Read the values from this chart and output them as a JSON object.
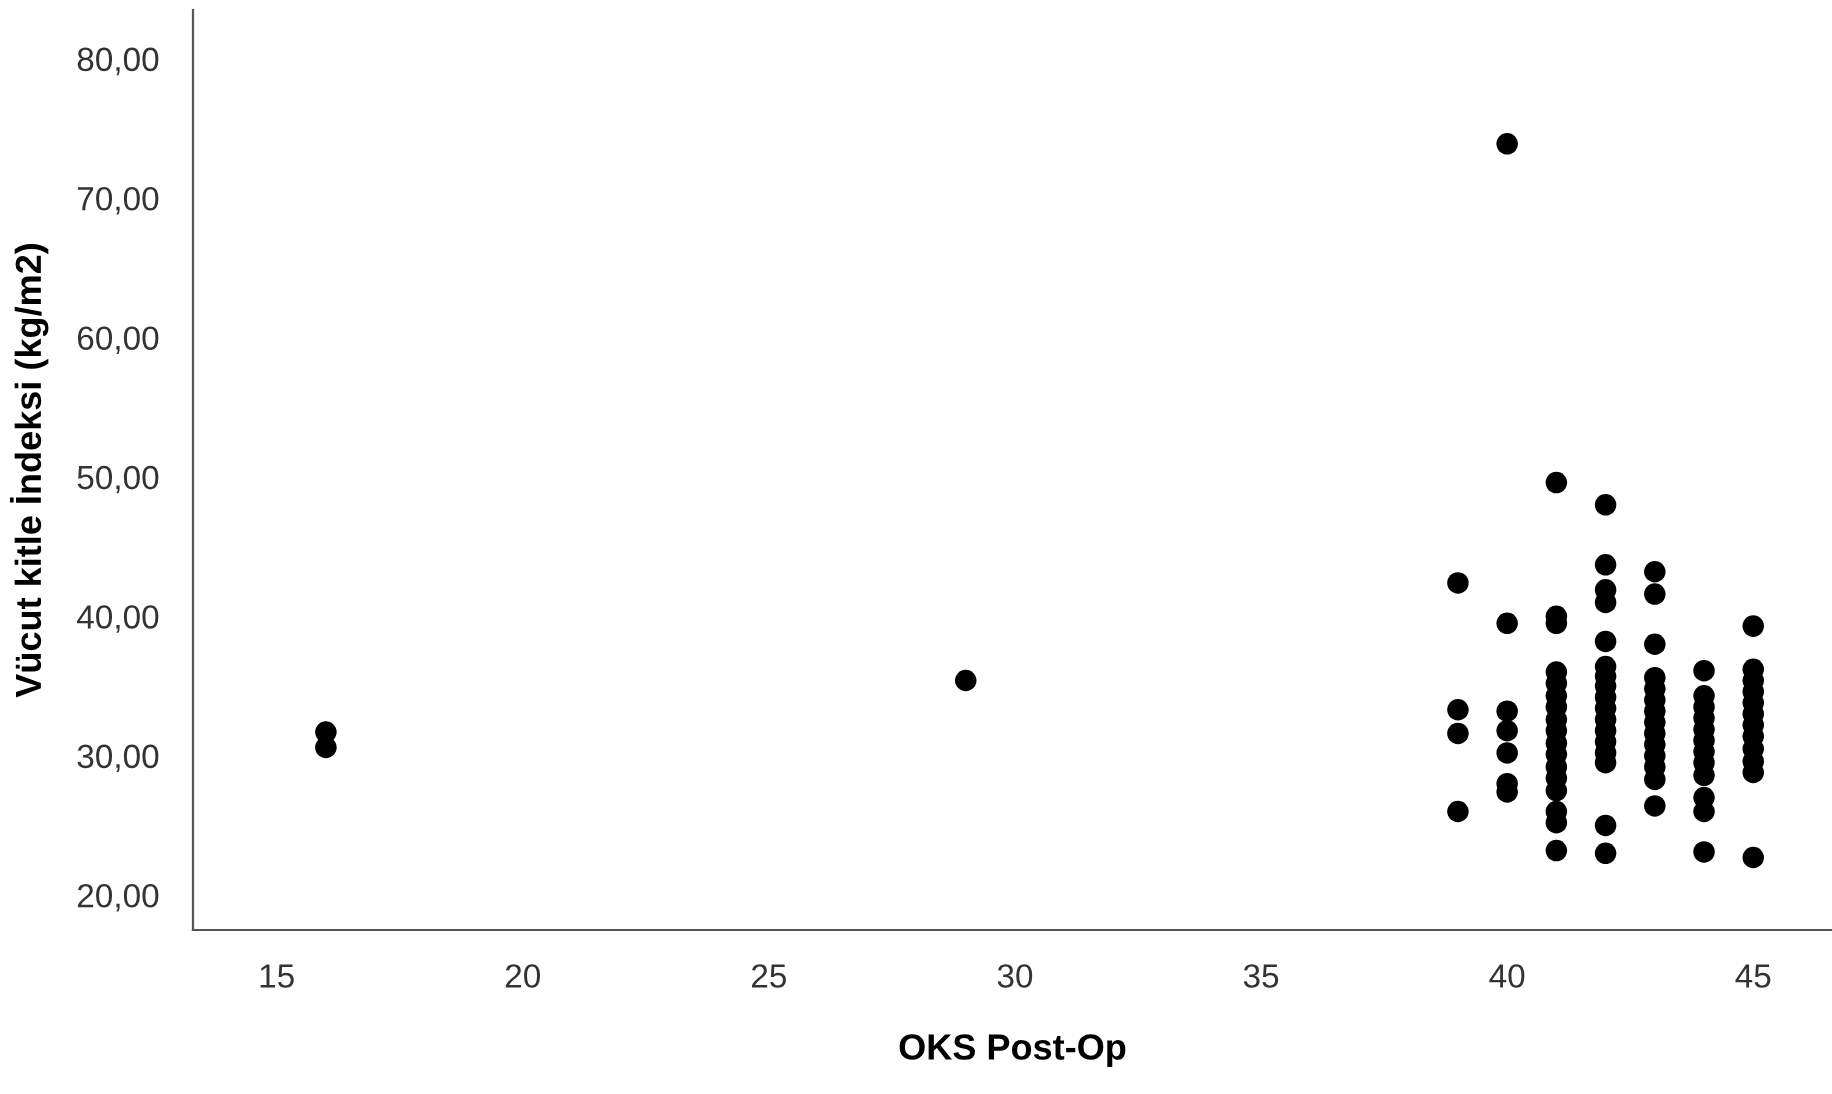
{
  "chart_data": {
    "type": "scatter",
    "xlabel": "OKS Post-Op",
    "ylabel": "Vücut kitle İndeksi (kg/m2)",
    "xlim": [
      13.3,
      46.6
    ],
    "ylim": [
      17.5,
      83.5
    ],
    "xticks": [
      15,
      20,
      25,
      30,
      35,
      40,
      45
    ],
    "yticks": [
      {
        "value": 20,
        "label": "20,00"
      },
      {
        "value": 30,
        "label": "30,00"
      },
      {
        "value": 40,
        "label": "40,00"
      },
      {
        "value": 50,
        "label": "50,00"
      },
      {
        "value": 60,
        "label": "60,00"
      },
      {
        "value": 70,
        "label": "70,00"
      },
      {
        "value": 80,
        "label": "80,00"
      }
    ],
    "grid": false,
    "marker": "circle",
    "series": [
      {
        "color": "#000000",
        "x": [
          16,
          16,
          29,
          39,
          39,
          39,
          39,
          40,
          40,
          40,
          40,
          40,
          40,
          40,
          41,
          41,
          41,
          41,
          41,
          41,
          41,
          41,
          41,
          41,
          41,
          41,
          41,
          41,
          41,
          41,
          41,
          42,
          42,
          42,
          42,
          42,
          42,
          42,
          42,
          42,
          42,
          42,
          42,
          42,
          42,
          42,
          42,
          42,
          43,
          43,
          43,
          43,
          43,
          43,
          43,
          43,
          43,
          43,
          43,
          43,
          43,
          43,
          44,
          44,
          44,
          44,
          44,
          44,
          44,
          44,
          44,
          44,
          44,
          44,
          45,
          45,
          45,
          45,
          45,
          45,
          45,
          45,
          45,
          45,
          45,
          45
        ],
        "values": [
          31.7,
          30.6,
          35.4,
          42.4,
          33.3,
          31.6,
          26.0,
          73.9,
          39.5,
          33.2,
          31.8,
          30.2,
          28.0,
          27.4,
          49.6,
          40.0,
          39.5,
          36.0,
          35.2,
          34.3,
          33.5,
          32.6,
          31.8,
          30.9,
          30.1,
          29.2,
          28.4,
          27.5,
          26.0,
          25.2,
          23.2,
          48.0,
          43.7,
          41.9,
          41.0,
          38.2,
          36.4,
          35.7,
          35.0,
          34.2,
          33.4,
          32.6,
          31.8,
          31.0,
          30.2,
          29.5,
          25.0,
          23.0,
          43.2,
          41.6,
          38.0,
          35.6,
          34.8,
          34.0,
          33.2,
          32.4,
          31.6,
          30.8,
          30.0,
          29.2,
          28.3,
          26.4,
          36.1,
          34.3,
          33.5,
          32.7,
          31.9,
          31.1,
          30.3,
          29.5,
          28.6,
          27.0,
          26.0,
          23.1,
          39.3,
          36.2,
          35.4,
          34.6,
          33.8,
          33.0,
          32.2,
          31.4,
          30.5,
          29.6,
          28.8,
          22.7
        ]
      }
    ]
  }
}
